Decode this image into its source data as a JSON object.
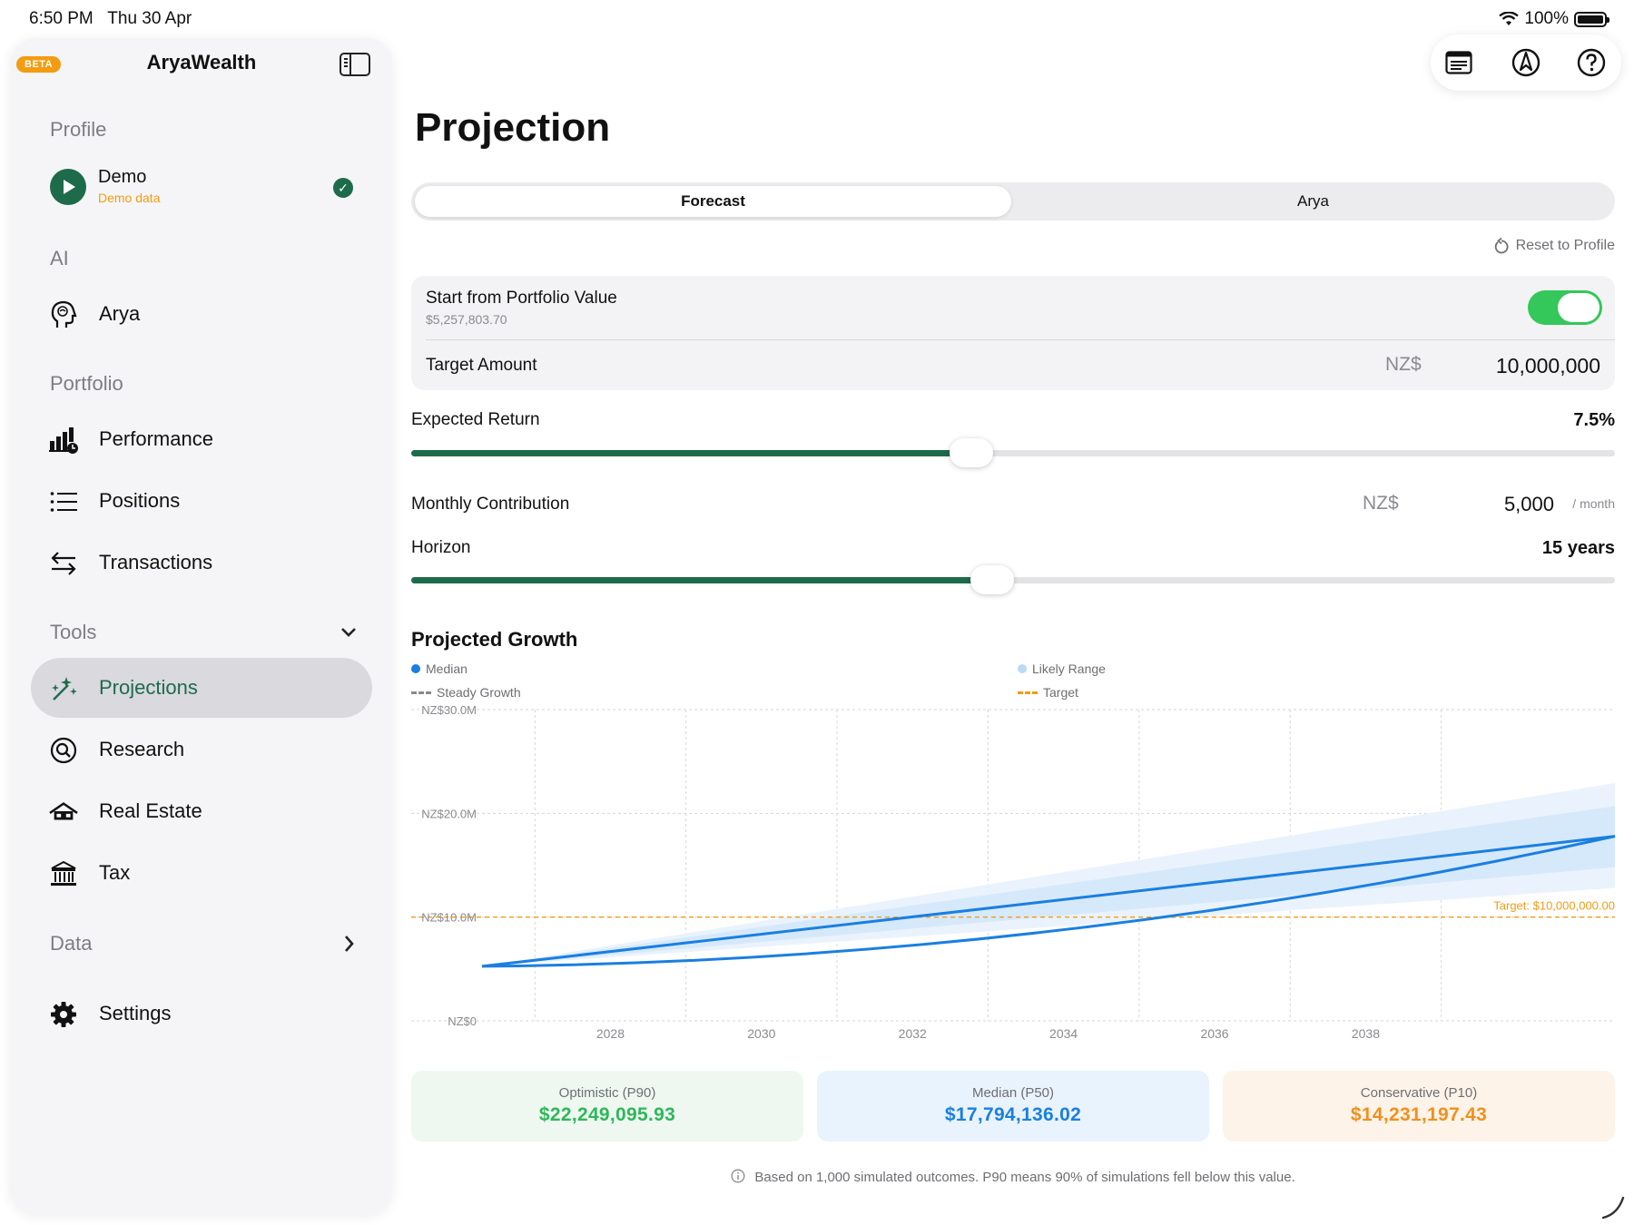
{
  "status": {
    "time": "6:50 PM",
    "date": "Thu 30 Apr",
    "battery": "100%"
  },
  "sidebar": {
    "badge": "BETA",
    "app_title": "AryaWealth",
    "profile_section": "Profile",
    "profile": {
      "name": "Demo",
      "sub": "Demo data"
    },
    "ai_section": "AI",
    "ai_items": [
      {
        "label": "Arya",
        "icon": "brain-head-icon"
      }
    ],
    "portfolio_section": "Portfolio",
    "portfolio_items": [
      {
        "label": "Performance",
        "icon": "bar-chart-icon"
      },
      {
        "label": "Positions",
        "icon": "list-icon"
      },
      {
        "label": "Transactions",
        "icon": "arrows-swap-icon"
      }
    ],
    "tools_section": "Tools",
    "tools_items": [
      {
        "label": "Projections",
        "icon": "magic-wand-icon",
        "active": true
      },
      {
        "label": "Research",
        "icon": "magnifier-icon"
      },
      {
        "label": "Real Estate",
        "icon": "house-icon"
      },
      {
        "label": "Tax",
        "icon": "bank-icon"
      }
    ],
    "data_section": "Data",
    "settings_label": "Settings"
  },
  "main": {
    "title": "Projection",
    "tabs": [
      "Forecast",
      "Arya"
    ],
    "active_tab": "Forecast",
    "reset_label": "Reset to Profile",
    "start_from_label": "Start from Portfolio Value",
    "start_from_value": "$5,257,803.70",
    "start_from_enabled": true,
    "target_label": "Target Amount",
    "target_currency": "NZ$",
    "target_value": "10,000,000",
    "expected_return_label": "Expected Return",
    "expected_return_value": "7.5%",
    "expected_return_fraction": 0.465,
    "monthly_label": "Monthly Contribution",
    "monthly_currency": "NZ$",
    "monthly_value": "5,000",
    "monthly_unit": "/ month",
    "horizon_label": "Horizon",
    "horizon_value": "15 years",
    "horizon_fraction": 0.483,
    "chart_title": "Projected Growth",
    "legend": {
      "median": "Median",
      "range": "Likely Range",
      "steady": "Steady Growth",
      "target": "Target"
    },
    "stats": [
      {
        "title": "Optimistic (P90)",
        "value": "$22,249,095.93",
        "color": "#2fb75a",
        "bg": "#eef8f1"
      },
      {
        "title": "Median (P50)",
        "value": "$17,794,136.02",
        "color": "#1a7fe0",
        "bg": "#e9f3fd"
      },
      {
        "title": "Conservative (P10)",
        "value": "$14,231,197.43",
        "color": "#f0901d",
        "bg": "#fdf3e8"
      }
    ],
    "footnote": "Based on 1,000 simulated outcomes. P90 means 90% of simulations fell below this value."
  },
  "colors": {
    "accent": "#1e6b4b",
    "median": "#1a7fe0",
    "range": "#d6e9fb",
    "target": "#f39c12",
    "toggle": "#34c759"
  },
  "chart_data": {
    "type": "line",
    "title": "Projected Growth",
    "x_ticks": [
      "2028",
      "2030",
      "2032",
      "2034",
      "2036",
      "2038"
    ],
    "y_ticks": [
      "NZ$0",
      "NZ$10.0M",
      "NZ$20.0M",
      "NZ$30.0M"
    ],
    "ylim": [
      0,
      30000000
    ],
    "xlim": [
      2026.3,
      2041.3
    ],
    "target": {
      "label": "Target: $10,000,000.00",
      "value": 10000000
    },
    "series": [
      {
        "name": "Median",
        "x": [
          2026.3,
          2041.3
        ],
        "y": [
          5257803.7,
          17794136.02
        ]
      },
      {
        "name": "Steady Growth",
        "x": [
          2026.3,
          2041.3
        ],
        "y": [
          5257803.7,
          17794136.02
        ]
      }
    ],
    "range": {
      "name": "Likely Range",
      "x": [
        2026.3,
        2041.3
      ],
      "low": [
        5257803.7,
        14231197.43
      ],
      "high": [
        5257803.7,
        22249095.93
      ]
    },
    "legend_position": "top"
  }
}
